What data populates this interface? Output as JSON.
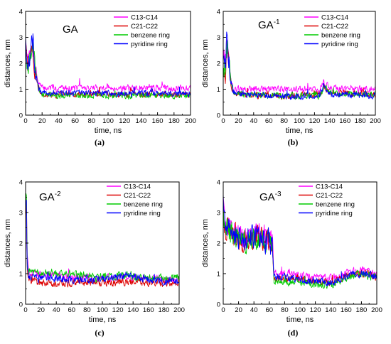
{
  "legend_series": [
    {
      "name": "C13-C14",
      "color": "#ff00ff"
    },
    {
      "name": "C21-C22",
      "color": "#dd0000"
    },
    {
      "name": "benzene ring",
      "color": "#00cc00"
    },
    {
      "name": "pyridine ring",
      "color": "#0000ff"
    }
  ],
  "chart_data": [
    {
      "type": "line",
      "panel_title": "GA",
      "title_sup": "",
      "caption": "(a)",
      "xlabel": "time, ns",
      "ylabel": "distances, nm",
      "xlim": [
        0,
        200
      ],
      "ylim": [
        0,
        4
      ],
      "xticks": [
        "0",
        "20",
        "40",
        "60",
        "80",
        "100",
        "120",
        "140",
        "160",
        "180",
        "200"
      ],
      "yticks": [
        "0",
        "1",
        "2",
        "3",
        "4"
      ],
      "legend_position": "top-right",
      "grid": false,
      "noise": 0.11,
      "series": [
        {
          "name": "C13-C14",
          "color": "#ff00ff",
          "points": [
            [
              0,
              3.0
            ],
            [
              2,
              2.1
            ],
            [
              5,
              2.3
            ],
            [
              8,
              2.8
            ],
            [
              10,
              2.3
            ],
            [
              13,
              1.6
            ],
            [
              16,
              1.2
            ],
            [
              20,
              1.05
            ],
            [
              40,
              1.05
            ],
            [
              60,
              1.05
            ],
            [
              80,
              1.05
            ],
            [
              100,
              1.05
            ],
            [
              120,
              1.05
            ],
            [
              140,
              1.05
            ],
            [
              160,
              1.05
            ],
            [
              180,
              1.05
            ],
            [
              200,
              1.05
            ]
          ]
        },
        {
          "name": "C21-C22",
          "color": "#dd0000",
          "points": [
            [
              0,
              2.8
            ],
            [
              2,
              1.9
            ],
            [
              5,
              2.0
            ],
            [
              8,
              2.6
            ],
            [
              10,
              2.1
            ],
            [
              13,
              1.4
            ],
            [
              16,
              1.0
            ],
            [
              20,
              0.75
            ],
            [
              40,
              0.8
            ],
            [
              60,
              0.8
            ],
            [
              80,
              0.8
            ],
            [
              100,
              0.8
            ],
            [
              120,
              0.8
            ],
            [
              140,
              0.8
            ],
            [
              160,
              0.8
            ],
            [
              180,
              0.8
            ],
            [
              200,
              0.8
            ]
          ]
        },
        {
          "name": "benzene ring",
          "color": "#00cc00",
          "points": [
            [
              0,
              2.9
            ],
            [
              2,
              2.0
            ],
            [
              5,
              2.1
            ],
            [
              8,
              2.7
            ],
            [
              10,
              2.2
            ],
            [
              13,
              1.5
            ],
            [
              16,
              1.0
            ],
            [
              20,
              0.8
            ],
            [
              40,
              0.75
            ],
            [
              60,
              0.75
            ],
            [
              80,
              0.75
            ],
            [
              100,
              0.75
            ],
            [
              120,
              0.75
            ],
            [
              140,
              0.75
            ],
            [
              160,
              0.75
            ],
            [
              180,
              0.75
            ],
            [
              200,
              0.75
            ]
          ]
        },
        {
          "name": "pyridine ring",
          "color": "#0000ff",
          "points": [
            [
              0,
              3.2
            ],
            [
              2,
              2.0
            ],
            [
              5,
              2.2
            ],
            [
              8,
              2.9
            ],
            [
              10,
              2.3
            ],
            [
              13,
              1.5
            ],
            [
              16,
              1.0
            ],
            [
              20,
              0.85
            ],
            [
              40,
              0.85
            ],
            [
              60,
              0.85
            ],
            [
              80,
              0.85
            ],
            [
              100,
              0.85
            ],
            [
              120,
              0.85
            ],
            [
              140,
              0.85
            ],
            [
              160,
              0.85
            ],
            [
              180,
              0.85
            ],
            [
              200,
              0.85
            ]
          ]
        }
      ]
    },
    {
      "type": "line",
      "panel_title": "GA",
      "title_sup": "-1",
      "caption": "(b)",
      "xlabel": "time, ns",
      "ylabel": "distances, nm",
      "xlim": [
        0,
        200
      ],
      "ylim": [
        0,
        4
      ],
      "xticks": [
        "0",
        "20",
        "40",
        "60",
        "80",
        "100",
        "120",
        "140",
        "160",
        "180",
        "200"
      ],
      "yticks": [
        "0",
        "1",
        "2",
        "3",
        "4"
      ],
      "legend_position": "top-right",
      "grid": false,
      "noise": 0.11,
      "series": [
        {
          "name": "C13-C14",
          "color": "#ff00ff",
          "points": [
            [
              0,
              2.8
            ],
            [
              3,
              2.0
            ],
            [
              5,
              2.9
            ],
            [
              7,
              2.2
            ],
            [
              10,
              1.4
            ],
            [
              13,
              1.0
            ],
            [
              20,
              1.0
            ],
            [
              60,
              1.0
            ],
            [
              100,
              1.0
            ],
            [
              128,
              1.0
            ],
            [
              132,
              1.3
            ],
            [
              140,
              1.05
            ],
            [
              160,
              1.0
            ],
            [
              200,
              1.0
            ]
          ]
        },
        {
          "name": "C21-C22",
          "color": "#dd0000",
          "points": [
            [
              0,
              1.8
            ],
            [
              3,
              1.6
            ],
            [
              5,
              2.5
            ],
            [
              7,
              2.0
            ],
            [
              10,
              1.2
            ],
            [
              13,
              0.9
            ],
            [
              20,
              0.8
            ],
            [
              60,
              0.75
            ],
            [
              100,
              0.75
            ],
            [
              128,
              0.8
            ],
            [
              132,
              1.1
            ],
            [
              140,
              0.85
            ],
            [
              160,
              0.85
            ],
            [
              200,
              0.8
            ]
          ]
        },
        {
          "name": "benzene ring",
          "color": "#00cc00",
          "points": [
            [
              0,
              1.9
            ],
            [
              3,
              1.7
            ],
            [
              5,
              2.6
            ],
            [
              7,
              2.1
            ],
            [
              10,
              1.3
            ],
            [
              13,
              0.85
            ],
            [
              20,
              0.8
            ],
            [
              60,
              0.75
            ],
            [
              100,
              0.75
            ],
            [
              128,
              0.75
            ],
            [
              132,
              1.05
            ],
            [
              140,
              0.85
            ],
            [
              160,
              0.85
            ],
            [
              200,
              0.8
            ]
          ]
        },
        {
          "name": "pyridine ring",
          "color": "#0000ff",
          "points": [
            [
              0,
              2.2
            ],
            [
              3,
              2.0
            ],
            [
              5,
              3.2
            ],
            [
              7,
              2.3
            ],
            [
              10,
              1.3
            ],
            [
              13,
              0.9
            ],
            [
              20,
              0.85
            ],
            [
              60,
              0.75
            ],
            [
              100,
              0.7
            ],
            [
              128,
              0.75
            ],
            [
              132,
              1.15
            ],
            [
              140,
              0.8
            ],
            [
              160,
              0.8
            ],
            [
              200,
              0.75
            ]
          ]
        }
      ]
    },
    {
      "type": "line",
      "panel_title": "GA",
      "title_sup": "-2",
      "caption": "(c)",
      "xlabel": "time, ns",
      "ylabel": "distances, nm",
      "xlim": [
        0,
        200
      ],
      "ylim": [
        0,
        4
      ],
      "xticks": [
        "0",
        "20",
        "40",
        "60",
        "80",
        "100",
        "120",
        "140",
        "160",
        "180",
        "200"
      ],
      "yticks": [
        "0",
        "1",
        "2",
        "3",
        "4"
      ],
      "legend_position": "top-right",
      "grid": false,
      "noise": 0.11,
      "series": [
        {
          "name": "C13-C14",
          "color": "#ff00ff",
          "points": [
            [
              0,
              3.2
            ],
            [
              1,
              3.8
            ],
            [
              2,
              1.5
            ],
            [
              4,
              1.0
            ],
            [
              20,
              0.95
            ],
            [
              60,
              0.9
            ],
            [
              100,
              0.85
            ],
            [
              130,
              0.9
            ],
            [
              160,
              0.85
            ],
            [
              200,
              0.8
            ]
          ]
        },
        {
          "name": "C21-C22",
          "color": "#dd0000",
          "points": [
            [
              0,
              3.0
            ],
            [
              1,
              3.5
            ],
            [
              2,
              1.3
            ],
            [
              4,
              0.8
            ],
            [
              20,
              0.7
            ],
            [
              60,
              0.7
            ],
            [
              100,
              0.7
            ],
            [
              130,
              0.75
            ],
            [
              160,
              0.7
            ],
            [
              200,
              0.7
            ]
          ]
        },
        {
          "name": "benzene ring",
          "color": "#00cc00",
          "points": [
            [
              0,
              3.1
            ],
            [
              1,
              3.6
            ],
            [
              2,
              1.4
            ],
            [
              4,
              1.05
            ],
            [
              20,
              1.0
            ],
            [
              60,
              1.0
            ],
            [
              100,
              0.9
            ],
            [
              130,
              0.95
            ],
            [
              160,
              0.85
            ],
            [
              200,
              0.85
            ]
          ]
        },
        {
          "name": "pyridine ring",
          "color": "#0000ff",
          "points": [
            [
              0,
              3.3
            ],
            [
              1,
              3.9
            ],
            [
              2,
              1.5
            ],
            [
              4,
              0.9
            ],
            [
              20,
              0.85
            ],
            [
              60,
              0.8
            ],
            [
              100,
              0.8
            ],
            [
              130,
              0.95
            ],
            [
              160,
              0.8
            ],
            [
              200,
              0.75
            ]
          ]
        }
      ]
    },
    {
      "type": "line",
      "panel_title": "GA",
      "title_sup": "-3",
      "caption": "(d)",
      "xlabel": "time, ns",
      "ylabel": "distances, nm",
      "xlim": [
        0,
        200
      ],
      "ylim": [
        0,
        4
      ],
      "xticks": [
        "0",
        "20",
        "40",
        "60",
        "80",
        "100",
        "120",
        "140",
        "160",
        "180",
        "200"
      ],
      "yticks": [
        "0",
        "1",
        "2",
        "3",
        "4"
      ],
      "legend_position": "top-right",
      "grid": false,
      "noise": 0.11,
      "series": [
        {
          "name": "C13-C14",
          "color": "#ff00ff",
          "points": [
            [
              0,
              3.6
            ],
            [
              1,
              2.8
            ],
            [
              5,
              2.6
            ],
            [
              15,
              2.4
            ],
            [
              25,
              2.1
            ],
            [
              35,
              2.2
            ],
            [
              45,
              2.3
            ],
            [
              55,
              2.2
            ],
            [
              64,
              2.1
            ],
            [
              66,
              1.0
            ],
            [
              100,
              0.95
            ],
            [
              140,
              0.85
            ],
            [
              165,
              1.05
            ],
            [
              180,
              1.1
            ],
            [
              200,
              1.0
            ]
          ]
        },
        {
          "name": "C21-C22",
          "color": "#dd0000",
          "points": [
            [
              0,
              3.4
            ],
            [
              1,
              2.6
            ],
            [
              5,
              2.5
            ],
            [
              15,
              2.2
            ],
            [
              25,
              2.0
            ],
            [
              35,
              2.1
            ],
            [
              45,
              2.2
            ],
            [
              55,
              2.1
            ],
            [
              64,
              2.0
            ],
            [
              66,
              0.85
            ],
            [
              100,
              0.8
            ],
            [
              140,
              0.7
            ],
            [
              165,
              0.95
            ],
            [
              180,
              1.0
            ],
            [
              200,
              0.9
            ]
          ]
        },
        {
          "name": "benzene ring",
          "color": "#00cc00",
          "points": [
            [
              0,
              3.5
            ],
            [
              1,
              2.7
            ],
            [
              5,
              2.5
            ],
            [
              15,
              2.3
            ],
            [
              25,
              2.0
            ],
            [
              35,
              2.1
            ],
            [
              45,
              2.2
            ],
            [
              55,
              2.1
            ],
            [
              64,
              2.0
            ],
            [
              66,
              0.75
            ],
            [
              100,
              0.7
            ],
            [
              140,
              0.6
            ],
            [
              165,
              0.9
            ],
            [
              180,
              1.0
            ],
            [
              200,
              0.85
            ]
          ]
        },
        {
          "name": "pyridine ring",
          "color": "#0000ff",
          "points": [
            [
              0,
              3.7
            ],
            [
              1,
              2.7
            ],
            [
              5,
              2.5
            ],
            [
              15,
              2.3
            ],
            [
              25,
              2.0
            ],
            [
              35,
              2.2
            ],
            [
              45,
              2.2
            ],
            [
              55,
              2.1
            ],
            [
              64,
              2.0
            ],
            [
              66,
              0.9
            ],
            [
              100,
              0.8
            ],
            [
              140,
              0.7
            ],
            [
              165,
              0.95
            ],
            [
              180,
              1.0
            ],
            [
              200,
              0.9
            ]
          ]
        }
      ]
    }
  ]
}
